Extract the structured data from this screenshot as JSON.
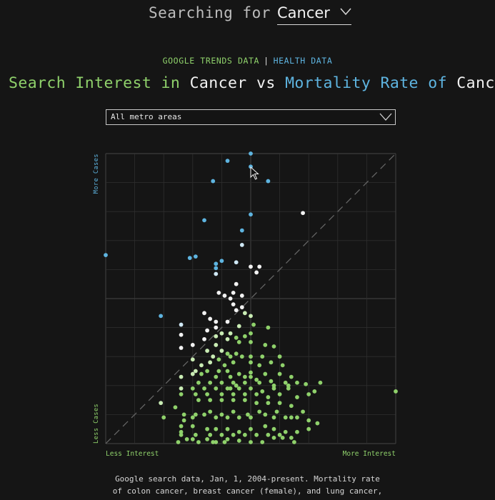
{
  "header": {
    "prefix": "Searching for",
    "term": "Cancer"
  },
  "sources": {
    "google": "GOOGLE TRENDS DATA",
    "separator": "|",
    "health": "HEALTH DATA"
  },
  "headline": {
    "part1": "Search Interest in",
    "term1": "Cancer",
    "vs": "vs",
    "part2": "Mortality Rate of",
    "term2": "Cancer"
  },
  "metro_select": {
    "value": "All metro areas"
  },
  "footnote": {
    "line1": "Google search data, Jan, 1, 2004-present. Mortality rate",
    "line2": "of colon cancer, breast cancer (female), and lung cancer,"
  },
  "colors": {
    "green": "#8fd16b",
    "blue": "#5eb4e0",
    "white": "#f2f2f2",
    "grid": "#2e2e2e",
    "axis": "#3c3c3c"
  },
  "chart_data": {
    "type": "scatter",
    "x_axis": {
      "low_label": "Less Interest",
      "high_label": "More Interest",
      "range": [
        0,
        100
      ]
    },
    "y_axis": {
      "low_label": "Less Cases",
      "high_label": "More Cases",
      "range": [
        0,
        100
      ]
    },
    "grid": true,
    "diagonal_reference": true,
    "points": [
      [
        50,
        100
      ],
      [
        42,
        97.5
      ],
      [
        50,
        95.5
      ],
      [
        37,
        90.5
      ],
      [
        56,
        90.5
      ],
      [
        50,
        79
      ],
      [
        68,
        79.5
      ],
      [
        34,
        77
      ],
      [
        47,
        73.5
      ],
      [
        47,
        68.5
      ],
      [
        0,
        65
      ],
      [
        29,
        64
      ],
      [
        31,
        64.5
      ],
      [
        40,
        63
      ],
      [
        38,
        62
      ],
      [
        38,
        60.5
      ],
      [
        38,
        58.5
      ],
      [
        50,
        61
      ],
      [
        53,
        61
      ],
      [
        45,
        62.5
      ],
      [
        52,
        59
      ],
      [
        45,
        55
      ],
      [
        39,
        52
      ],
      [
        41,
        51
      ],
      [
        44,
        52
      ],
      [
        43,
        50
      ],
      [
        47,
        51
      ],
      [
        44,
        48
      ],
      [
        47,
        47
      ],
      [
        45,
        46
      ],
      [
        34,
        45
      ],
      [
        48,
        45
      ],
      [
        19,
        44
      ],
      [
        36,
        43
      ],
      [
        38,
        42
      ],
      [
        50,
        44
      ],
      [
        26,
        41
      ],
      [
        42,
        42
      ],
      [
        38,
        40
      ],
      [
        51,
        41
      ],
      [
        56,
        40
      ],
      [
        46,
        40.5
      ],
      [
        40,
        38
      ],
      [
        43,
        38
      ],
      [
        26,
        37.5
      ],
      [
        50,
        38
      ],
      [
        35,
        39
      ],
      [
        48,
        37
      ],
      [
        38,
        37
      ],
      [
        34,
        36
      ],
      [
        42,
        36
      ],
      [
        45,
        36.5
      ],
      [
        30,
        34
      ],
      [
        38,
        34
      ],
      [
        46,
        35
      ],
      [
        50,
        35
      ],
      [
        55,
        34
      ],
      [
        58,
        33.5
      ],
      [
        26,
        33
      ],
      [
        35,
        32
      ],
      [
        40,
        32
      ],
      [
        42,
        31
      ],
      [
        45,
        31
      ],
      [
        50,
        30
      ],
      [
        54,
        30
      ],
      [
        60,
        30
      ],
      [
        30,
        29
      ],
      [
        37,
        30
      ],
      [
        43,
        30
      ],
      [
        47,
        30
      ],
      [
        39,
        29
      ],
      [
        36,
        28
      ],
      [
        41,
        27
      ],
      [
        44,
        28
      ],
      [
        33,
        27
      ],
      [
        50,
        28
      ],
      [
        57,
        28
      ],
      [
        61,
        27
      ],
      [
        53,
        27
      ],
      [
        31,
        25
      ],
      [
        35,
        25
      ],
      [
        39,
        25
      ],
      [
        42,
        25
      ],
      [
        46,
        24
      ],
      [
        50,
        24.5
      ],
      [
        55,
        24
      ],
      [
        60,
        24
      ],
      [
        64,
        23
      ],
      [
        30,
        24
      ],
      [
        26,
        23
      ],
      [
        33,
        24
      ],
      [
        38,
        23
      ],
      [
        43,
        23
      ],
      [
        48,
        23
      ],
      [
        52,
        22
      ],
      [
        57,
        21.5
      ],
      [
        62,
        21
      ],
      [
        66,
        21
      ],
      [
        32,
        21
      ],
      [
        36,
        21
      ],
      [
        40,
        21
      ],
      [
        44,
        21
      ],
      [
        48,
        21
      ],
      [
        53,
        21
      ],
      [
        58,
        20
      ],
      [
        63,
        20
      ],
      [
        69,
        20.5
      ],
      [
        74,
        21
      ],
      [
        26,
        19
      ],
      [
        30,
        19
      ],
      [
        34,
        19
      ],
      [
        38,
        19
      ],
      [
        42,
        19
      ],
      [
        46,
        19
      ],
      [
        50,
        19
      ],
      [
        54,
        18
      ],
      [
        58,
        19
      ],
      [
        63,
        19
      ],
      [
        26,
        17
      ],
      [
        31,
        17
      ],
      [
        35,
        17
      ],
      [
        40,
        17
      ],
      [
        44,
        17
      ],
      [
        48,
        17
      ],
      [
        52,
        17
      ],
      [
        56,
        16
      ],
      [
        60,
        17
      ],
      [
        66,
        16
      ],
      [
        70,
        17
      ],
      [
        72,
        18
      ],
      [
        100,
        18
      ],
      [
        19,
        14
      ],
      [
        24,
        12.5
      ],
      [
        32,
        15
      ],
      [
        36,
        15
      ],
      [
        40,
        15
      ],
      [
        44,
        15
      ],
      [
        48,
        15
      ],
      [
        52,
        14
      ],
      [
        56,
        14
      ],
      [
        60,
        14
      ],
      [
        64,
        13
      ],
      [
        20,
        9
      ],
      [
        27,
        8
      ],
      [
        30,
        9
      ],
      [
        34,
        10
      ],
      [
        38,
        9
      ],
      [
        42,
        9
      ],
      [
        46,
        9
      ],
      [
        50,
        9
      ],
      [
        55,
        10
      ],
      [
        59,
        11
      ],
      [
        62,
        9
      ],
      [
        66,
        9
      ],
      [
        70,
        8
      ],
      [
        73,
        7
      ],
      [
        27,
        10
      ],
      [
        31,
        10
      ],
      [
        36,
        11
      ],
      [
        40,
        10
      ],
      [
        44,
        11
      ],
      [
        49,
        10
      ],
      [
        53,
        11
      ],
      [
        58,
        9
      ],
      [
        64,
        9
      ],
      [
        68,
        11
      ],
      [
        26,
        6
      ],
      [
        30,
        6
      ],
      [
        35,
        5
      ],
      [
        38,
        5
      ],
      [
        42,
        5
      ],
      [
        46,
        4
      ],
      [
        50,
        5
      ],
      [
        55,
        6
      ],
      [
        58,
        5
      ],
      [
        62,
        4
      ],
      [
        66,
        4
      ],
      [
        70,
        5
      ],
      [
        26,
        4
      ],
      [
        31,
        3
      ],
      [
        36,
        3
      ],
      [
        40,
        3
      ],
      [
        44,
        3
      ],
      [
        48,
        3
      ],
      [
        52,
        3
      ],
      [
        56,
        3
      ],
      [
        60,
        3
      ],
      [
        64,
        2
      ],
      [
        26,
        3
      ],
      [
        30,
        1.5
      ],
      [
        35,
        1.5
      ],
      [
        38,
        0.5
      ],
      [
        42,
        1.5
      ],
      [
        46,
        1
      ],
      [
        50,
        0.5
      ],
      [
        54,
        0.5
      ],
      [
        58,
        2
      ],
      [
        61,
        2
      ],
      [
        25,
        0.5
      ],
      [
        28,
        1.5
      ],
      [
        32,
        0.5
      ],
      [
        37,
        0.5
      ],
      [
        41,
        0.5
      ],
      [
        65,
        0.5
      ],
      [
        50,
        23
      ],
      [
        45,
        20
      ],
      [
        43,
        19
      ]
    ]
  }
}
